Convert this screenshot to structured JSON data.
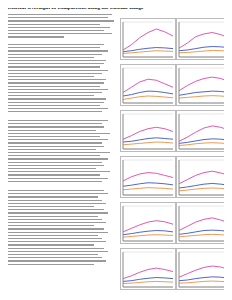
{
  "header": {
    "title": "Historical Overnight Ix Comparisons along the Cascade Range"
  },
  "chart_data": [
    {
      "type": "line",
      "categories": [
        null,
        null,
        null,
        null,
        null,
        null,
        null
      ],
      "ylim": [
        0,
        100
      ],
      "yticks": [
        0,
        50,
        100
      ],
      "grid": true,
      "tick_labels": false,
      "series": [
        {
          "name": null,
          "color": "#d62fa0",
          "values": [
            20,
            35,
            55,
            70,
            80,
            72,
            60
          ]
        },
        {
          "name": null,
          "color": "#2040c0",
          "values": [
            15,
            18,
            22,
            25,
            27,
            26,
            24
          ]
        },
        {
          "name": null,
          "color": "#e8822a",
          "values": [
            10,
            12,
            14,
            16,
            18,
            17,
            16
          ]
        }
      ]
    },
    {
      "type": "line",
      "categories": [
        null,
        null,
        null,
        null,
        null,
        null,
        null
      ],
      "ylim": [
        0,
        100
      ],
      "yticks": [
        0,
        50,
        100
      ],
      "grid": true,
      "tick_labels": false,
      "series": [
        {
          "name": null,
          "color": "#d62fa0",
          "values": [
            25,
            40,
            58,
            66,
            70,
            64,
            55
          ]
        },
        {
          "name": null,
          "color": "#2040c0",
          "values": [
            18,
            20,
            24,
            28,
            30,
            29,
            27
          ]
        },
        {
          "name": null,
          "color": "#e8822a",
          "values": [
            12,
            13,
            15,
            17,
            19,
            18,
            17
          ]
        }
      ]
    },
    {
      "type": "line",
      "categories": [
        null,
        null,
        null,
        null,
        null,
        null,
        null
      ],
      "ylim": [
        0,
        100
      ],
      "yticks": [
        0,
        50,
        100
      ],
      "grid": true,
      "tick_labels": false,
      "series": [
        {
          "name": null,
          "color": "#d62fa0",
          "values": [
            30,
            45,
            60,
            68,
            65,
            55,
            45
          ]
        },
        {
          "name": null,
          "color": "#2040c0",
          "values": [
            20,
            24,
            30,
            34,
            33,
            30,
            26
          ]
        },
        {
          "name": null,
          "color": "#e8822a",
          "values": [
            10,
            14,
            18,
            20,
            19,
            17,
            15
          ]
        }
      ]
    },
    {
      "type": "line",
      "categories": [
        null,
        null,
        null,
        null,
        null,
        null,
        null
      ],
      "ylim": [
        0,
        100
      ],
      "yticks": [
        0,
        50,
        100
      ],
      "grid": true,
      "tick_labels": false,
      "series": [
        {
          "name": null,
          "color": "#d62fa0",
          "values": [
            35,
            50,
            62,
            70,
            74,
            70,
            62
          ]
        },
        {
          "name": null,
          "color": "#2040c0",
          "values": [
            22,
            26,
            30,
            32,
            34,
            33,
            30
          ]
        },
        {
          "name": null,
          "color": "#e8822a",
          "values": [
            14,
            16,
            18,
            20,
            21,
            20,
            18
          ]
        }
      ]
    },
    {
      "type": "line",
      "categories": [
        null,
        null,
        null,
        null,
        null,
        null,
        null
      ],
      "ylim": [
        0,
        100
      ],
      "yticks": [
        0,
        50,
        100
      ],
      "grid": true,
      "tick_labels": false,
      "series": [
        {
          "name": null,
          "color": "#d62fa0",
          "values": [
            28,
            38,
            50,
            58,
            62,
            58,
            50
          ]
        },
        {
          "name": null,
          "color": "#2040c0",
          "values": [
            20,
            22,
            26,
            30,
            32,
            30,
            28
          ]
        },
        {
          "name": null,
          "color": "#e8822a",
          "values": [
            12,
            14,
            16,
            18,
            20,
            19,
            17
          ]
        }
      ]
    },
    {
      "type": "line",
      "categories": [
        null,
        null,
        null,
        null,
        null,
        null,
        null
      ],
      "ylim": [
        0,
        100
      ],
      "yticks": [
        0,
        50,
        100
      ],
      "grid": true,
      "tick_labels": false,
      "series": [
        {
          "name": null,
          "color": "#d62fa0",
          "values": [
            22,
            34,
            48,
            60,
            66,
            62,
            54
          ]
        },
        {
          "name": null,
          "color": "#2040c0",
          "values": [
            16,
            19,
            23,
            27,
            29,
            28,
            25
          ]
        },
        {
          "name": null,
          "color": "#e8822a",
          "values": [
            10,
            12,
            15,
            17,
            18,
            17,
            15
          ]
        }
      ]
    },
    {
      "type": "line",
      "categories": [
        null,
        null,
        null,
        null,
        null,
        null,
        null
      ],
      "ylim": [
        0,
        100
      ],
      "yticks": [
        0,
        50,
        100
      ],
      "grid": true,
      "tick_labels": false,
      "series": [
        {
          "name": null,
          "color": "#d62fa0",
          "values": [
            40,
            52,
            60,
            64,
            62,
            56,
            50
          ]
        },
        {
          "name": null,
          "color": "#2040c0",
          "values": [
            25,
            28,
            32,
            35,
            34,
            32,
            29
          ]
        },
        {
          "name": null,
          "color": "#e8822a",
          "values": [
            15,
            17,
            19,
            21,
            20,
            19,
            17
          ]
        }
      ]
    },
    {
      "type": "line",
      "categories": [
        null,
        null,
        null,
        null,
        null,
        null,
        null
      ],
      "ylim": [
        0,
        100
      ],
      "yticks": [
        0,
        50,
        100
      ],
      "grid": true,
      "tick_labels": false,
      "series": [
        {
          "name": null,
          "color": "#d62fa0",
          "values": [
            32,
            44,
            56,
            64,
            68,
            63,
            56
          ]
        },
        {
          "name": null,
          "color": "#2040c0",
          "values": [
            20,
            23,
            27,
            31,
            33,
            31,
            28
          ]
        },
        {
          "name": null,
          "color": "#e8822a",
          "values": [
            12,
            14,
            17,
            19,
            20,
            19,
            17
          ]
        }
      ]
    },
    {
      "type": "line",
      "categories": [
        null,
        null,
        null,
        null,
        null,
        null,
        null
      ],
      "ylim": [
        0,
        100
      ],
      "yticks": [
        0,
        50,
        100
      ],
      "grid": true,
      "tick_labels": false,
      "series": [
        {
          "name": null,
          "color": "#d62fa0",
          "values": [
            26,
            36,
            46,
            54,
            58,
            55,
            48
          ]
        },
        {
          "name": null,
          "color": "#2040c0",
          "values": [
            18,
            21,
            25,
            28,
            30,
            29,
            26
          ]
        },
        {
          "name": null,
          "color": "#e8822a",
          "values": [
            11,
            13,
            15,
            17,
            18,
            17,
            16
          ]
        }
      ]
    },
    {
      "type": "line",
      "categories": [
        null,
        null,
        null,
        null,
        null,
        null,
        null
      ],
      "ylim": [
        0,
        100
      ],
      "yticks": [
        0,
        50,
        100
      ],
      "grid": true,
      "tick_labels": false,
      "series": [
        {
          "name": null,
          "color": "#d62fa0",
          "values": [
            30,
            42,
            54,
            62,
            66,
            60,
            52
          ]
        },
        {
          "name": null,
          "color": "#2040c0",
          "values": [
            19,
            22,
            26,
            30,
            31,
            30,
            27
          ]
        },
        {
          "name": null,
          "color": "#e8822a",
          "values": [
            12,
            14,
            16,
            18,
            19,
            18,
            16
          ]
        }
      ]
    },
    {
      "type": "line",
      "categories": [
        null,
        null,
        null,
        null,
        null,
        null,
        null
      ],
      "ylim": [
        0,
        100
      ],
      "yticks": [
        0,
        50,
        100
      ],
      "grid": true,
      "tick_labels": false,
      "series": [
        {
          "name": null,
          "color": "#d62fa0",
          "values": [
            24,
            32,
            42,
            50,
            54,
            50,
            44
          ]
        },
        {
          "name": null,
          "color": "#2040c0",
          "values": [
            16,
            18,
            22,
            25,
            27,
            26,
            24
          ]
        },
        {
          "name": null,
          "color": "#e8822a",
          "values": [
            10,
            11,
            13,
            15,
            16,
            15,
            14
          ]
        }
      ]
    },
    {
      "type": "line",
      "categories": [
        null,
        null,
        null,
        null,
        null,
        null,
        null
      ],
      "ylim": [
        0,
        100
      ],
      "yticks": [
        0,
        50,
        100
      ],
      "grid": true,
      "tick_labels": false,
      "series": [
        {
          "name": null,
          "color": "#d62fa0",
          "values": [
            28,
            38,
            48,
            56,
            60,
            57,
            50
          ]
        },
        {
          "name": null,
          "color": "#2040c0",
          "values": [
            18,
            20,
            24,
            27,
            29,
            28,
            25
          ]
        },
        {
          "name": null,
          "color": "#e8822a",
          "values": [
            11,
            12,
            14,
            16,
            17,
            16,
            15
          ]
        }
      ]
    }
  ]
}
